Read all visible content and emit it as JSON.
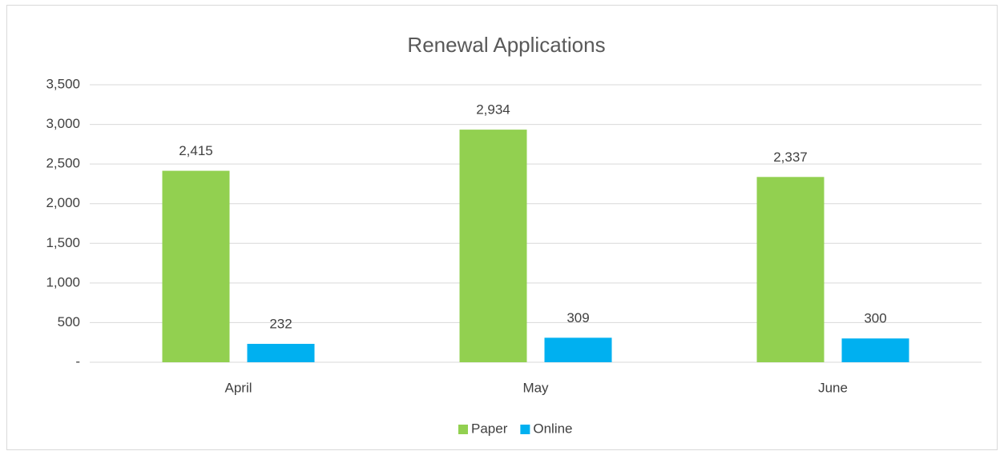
{
  "chart_data": {
    "type": "bar",
    "title": "Renewal Applications",
    "categories": [
      "April",
      "May",
      "June"
    ],
    "series": [
      {
        "name": "Paper",
        "color": "#92d050",
        "values": [
          2415,
          2934,
          2337
        ],
        "value_labels": [
          "2,415",
          "2,934",
          "2,337"
        ]
      },
      {
        "name": "Online",
        "color": "#00b0f0",
        "values": [
          232,
          309,
          300
        ]
      }
    ],
    "ylim": [
      0,
      3500
    ],
    "yticks": [
      {
        "value": 0,
        "label": "-"
      },
      500,
      {
        "value": 1000,
        "label": "1,000"
      },
      {
        "value": 1500,
        "label": "1,500"
      },
      {
        "value": 2000,
        "label": "2,000"
      },
      {
        "value": 2500,
        "label": "2,500"
      },
      {
        "value": 3000,
        "label": "3,000"
      },
      {
        "value": 3500,
        "label": "3,500"
      }
    ],
    "grid": true,
    "legend": "bottom"
  }
}
